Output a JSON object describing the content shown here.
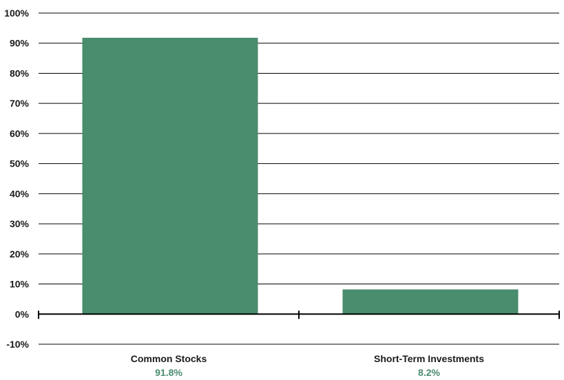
{
  "colors": {
    "bar": "#4a8c6e",
    "value_label": "#4a8c6e",
    "gridline": "#000000"
  },
  "chart_data": {
    "type": "bar",
    "categories": [
      "Common Stocks",
      "Short-Term Investments"
    ],
    "values": [
      91.8,
      8.2
    ],
    "value_labels": [
      "91.8%",
      "8.2%"
    ],
    "title": "",
    "xlabel": "",
    "ylabel": "",
    "ylim": [
      -10,
      100
    ],
    "yticks": [
      100,
      90,
      80,
      70,
      60,
      50,
      40,
      30,
      20,
      10,
      0,
      -10
    ],
    "ytick_labels": [
      "100%",
      "90%",
      "80%",
      "70%",
      "60%",
      "50%",
      "40%",
      "30%",
      "20%",
      "10%",
      "0%",
      "-10%"
    ],
    "grid": true,
    "legend": "none"
  }
}
